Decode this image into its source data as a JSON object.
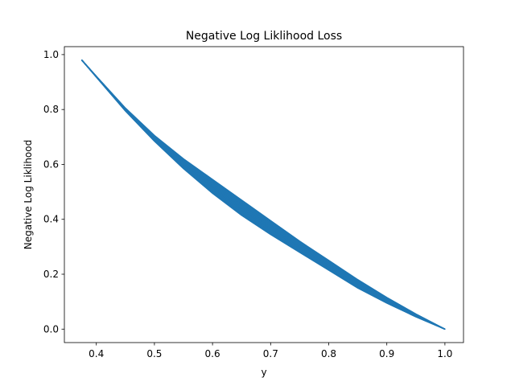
{
  "chart_data": {
    "type": "line",
    "title": "Negative Log Liklihood Loss",
    "xlabel": "y",
    "ylabel": "Negative Log Liklihood",
    "xlim": [
      0.345,
      1.032
    ],
    "ylim": [
      -0.049,
      1.029
    ],
    "xticks": [
      0.4,
      0.5,
      0.6,
      0.7,
      0.8,
      0.9,
      1.0
    ],
    "xtick_labels": [
      "0.4",
      "0.5",
      "0.6",
      "0.7",
      "0.8",
      "0.9",
      "1.0"
    ],
    "yticks": [
      0.0,
      0.2,
      0.4,
      0.6,
      0.8,
      1.0
    ],
    "ytick_labels": [
      "0.0",
      "0.2",
      "0.4",
      "0.6",
      "0.8",
      "1.0"
    ],
    "grid": false,
    "series_color": "#1f77b4",
    "series": [
      {
        "x": [
          0.375,
          0.4,
          0.45,
          0.5,
          0.55,
          0.6,
          0.65,
          0.7,
          0.75,
          0.8,
          0.85,
          0.9,
          0.95,
          1.0
        ],
        "y": [
          0.98,
          0.92,
          0.8,
          0.69,
          0.6,
          0.51,
          0.43,
          0.36,
          0.29,
          0.22,
          0.16,
          0.1,
          0.05,
          0.0
        ],
        "y_upper": [
          0.98,
          0.921,
          0.805,
          0.705,
          0.62,
          0.545,
          0.47,
          0.395,
          0.32,
          0.25,
          0.18,
          0.115,
          0.055,
          0.0
        ],
        "y_lower": [
          0.98,
          0.918,
          0.795,
          0.685,
          0.585,
          0.495,
          0.415,
          0.345,
          0.28,
          0.215,
          0.15,
          0.095,
          0.045,
          0.0
        ]
      }
    ]
  }
}
